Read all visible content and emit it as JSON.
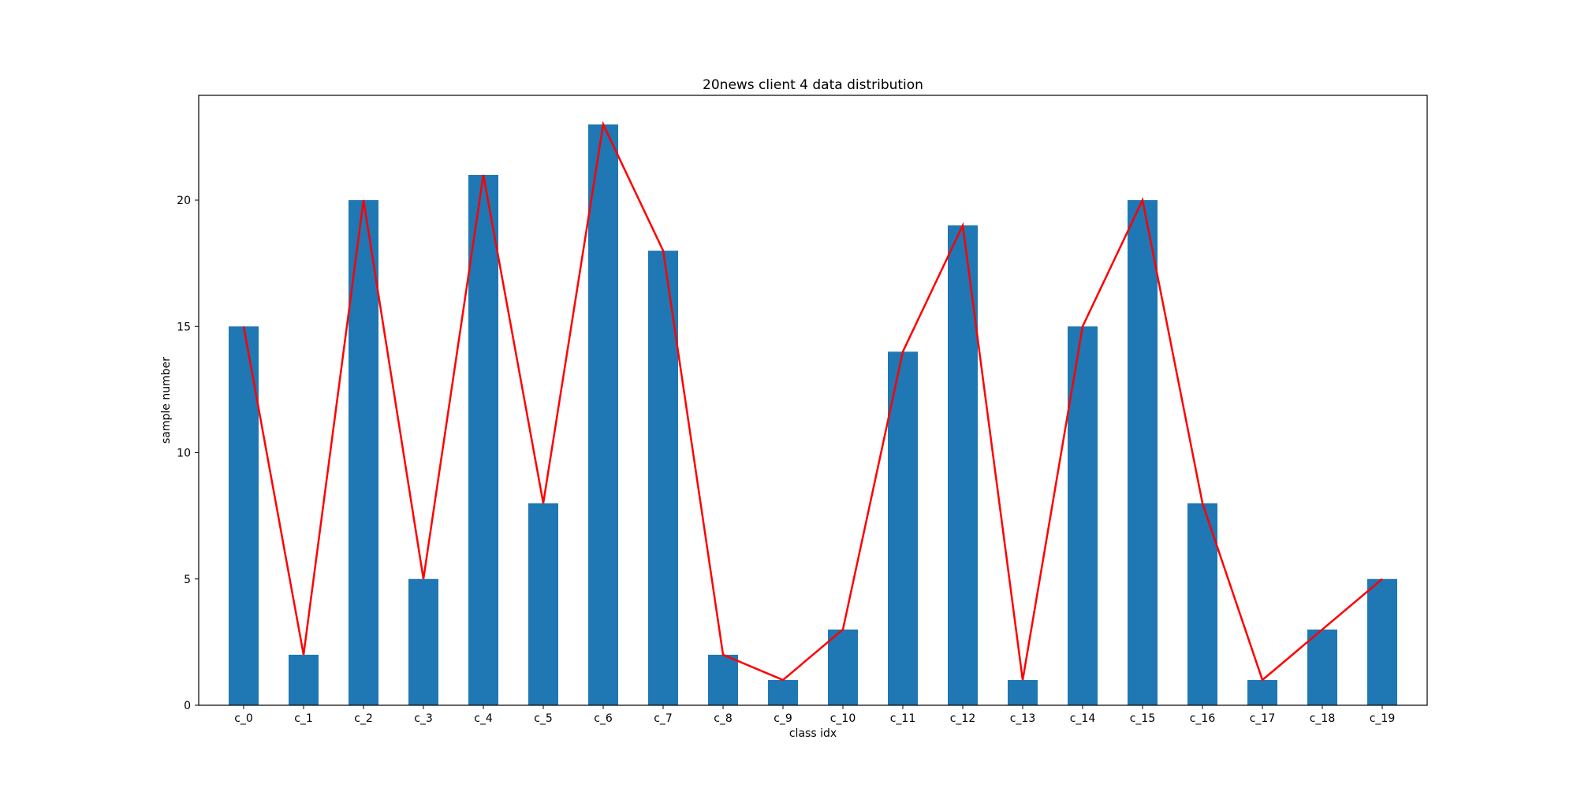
{
  "chart_data": {
    "type": "bar",
    "title": "20news client 4 data distribution",
    "xlabel": "class idx",
    "ylabel": "sample number",
    "categories": [
      "c_0",
      "c_1",
      "c_2",
      "c_3",
      "c_4",
      "c_5",
      "c_6",
      "c_7",
      "c_8",
      "c_9",
      "c_10",
      "c_11",
      "c_12",
      "c_13",
      "c_14",
      "c_15",
      "c_16",
      "c_17",
      "c_18",
      "c_19"
    ],
    "values": [
      15,
      2,
      20,
      5,
      21,
      8,
      23,
      18,
      2,
      1,
      3,
      14,
      19,
      1,
      15,
      20,
      8,
      1,
      3,
      5
    ],
    "overlay_line": true,
    "ylim": [
      0,
      24.15
    ],
    "yticks": [
      0,
      5,
      10,
      15,
      20
    ],
    "grid": false,
    "colors": {
      "bar": "#1f77b4",
      "line": "#ff0000"
    }
  }
}
